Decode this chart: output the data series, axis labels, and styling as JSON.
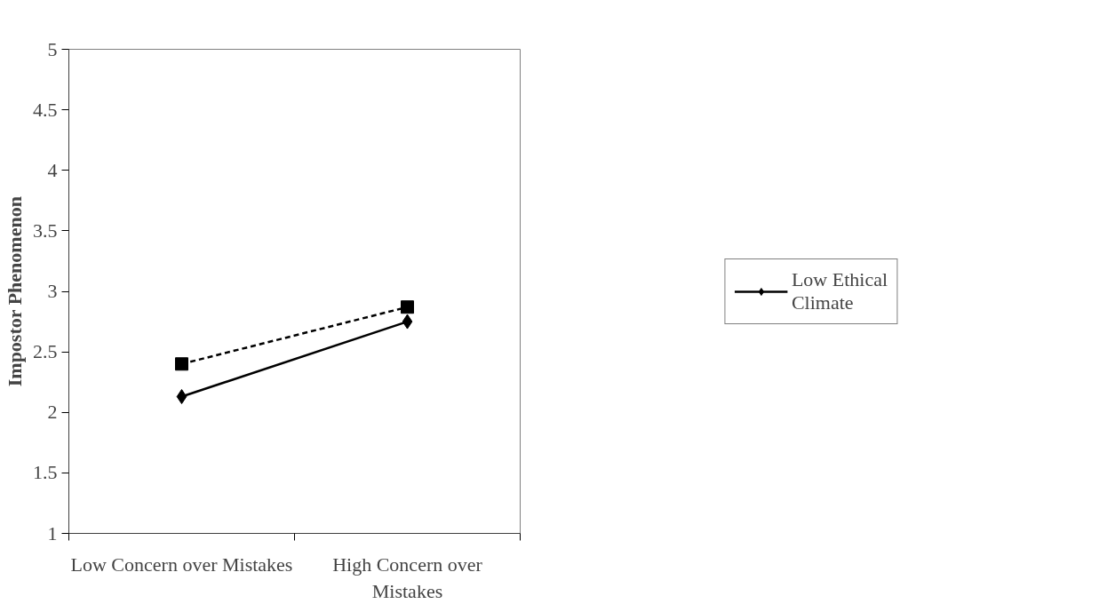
{
  "chart_data": {
    "type": "line",
    "ylabel": "Impostor Phenomenon",
    "categories": [
      "Low Concern over Mistakes",
      "High Concern over Mistakes"
    ],
    "series": [
      {
        "name": "Low Ethical Climate",
        "color": "#000000",
        "values": [
          2.13,
          2.75
        ],
        "marker": "diamond",
        "line_style": "solid"
      },
      {
        "color": "#000000",
        "values": [
          2.4,
          2.87
        ],
        "marker": "square",
        "line_style": "dashed"
      }
    ],
    "ylim": [
      1,
      5
    ],
    "yticks": [
      1,
      1.5,
      2,
      2.5,
      3,
      3.5,
      4,
      4.5,
      5
    ],
    "grid": false,
    "legend": "right"
  }
}
